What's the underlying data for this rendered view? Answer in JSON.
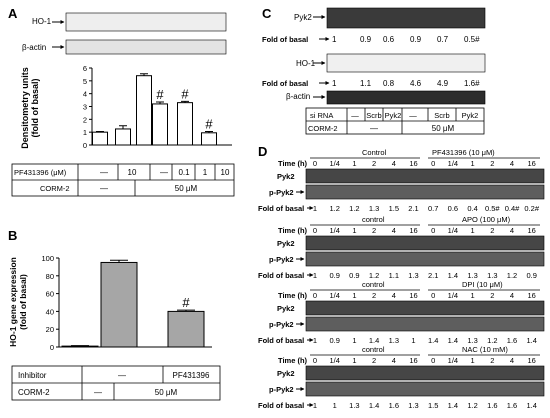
{
  "panels": {
    "A": {
      "letter": "A",
      "blot_labels": [
        "HO-1",
        "β-actin"
      ],
      "table": {
        "rows": [
          {
            "label": "PF431396 (μM)",
            "cells": [
              "—",
              "10",
              "—",
              "0.1",
              "1",
              "10"
            ]
          },
          {
            "label": "CORM-2",
            "cells": [
              "—",
              "50 μM"
            ]
          }
        ]
      },
      "sig_mark": "#"
    },
    "B": {
      "letter": "B",
      "table": {
        "rows": [
          {
            "label": "Inhibitor",
            "cells": [
              "—",
              "PF431396"
            ]
          },
          {
            "label": "CORM-2",
            "cells": [
              "—",
              "50 μM"
            ]
          }
        ]
      },
      "sig_mark": "#"
    },
    "C": {
      "letter": "C",
      "blot_labels": [
        "Pyk2",
        "HO-1",
        "β-actin"
      ],
      "fold_label": "Fold of basal",
      "fold_pyk2": [
        "1",
        "0.9",
        "0.6",
        "0.9",
        "0.7",
        "0.5#"
      ],
      "fold_ho1": [
        "1",
        "1.1",
        "0.8",
        "4.6",
        "4.9",
        "1.6#"
      ],
      "sirna": {
        "label": "si RNA",
        "cells": [
          "—",
          "Scrb",
          "Pyk2",
          "—",
          "Scrb",
          "Pyk2"
        ]
      },
      "corm": {
        "label": "CORM-2",
        "cells": [
          "—",
          "50 μM"
        ]
      }
    },
    "D": {
      "letter": "D",
      "time_label": "Time (h)",
      "times": [
        "0",
        "1/4",
        "1",
        "2",
        "4",
        "16"
      ],
      "row_labels": [
        "Pyk2",
        "p-Pyk2"
      ],
      "fold_label": "Fold of basal",
      "groups": [
        {
          "control": "Control",
          "treat": "PF431396 (10 μM)",
          "fold": [
            "1",
            "1.2",
            "1.2",
            "1.3",
            "1.5",
            "2.1",
            "0.7",
            "0.6",
            "0.4",
            "0.5#",
            "0.4#",
            "0.2#"
          ]
        },
        {
          "control": "control",
          "treat": "APO (100 μM)",
          "fold": [
            "1",
            "0.9",
            "0.9",
            "1.2",
            "1.1",
            "1.3",
            "2.1",
            "1.4",
            "1.3",
            "1.3",
            "1.2",
            "0.9"
          ]
        },
        {
          "control": "control",
          "treat": "DPI (10 μM)",
          "fold": [
            "1",
            "0.9",
            "1",
            "1.4",
            "1.3",
            "1",
            "1.4",
            "1.4",
            "1.3",
            "1.2",
            "1.6",
            "1.4"
          ]
        },
        {
          "control": "control",
          "treat": "NAC (10 mM)",
          "fold": [
            "1",
            "1",
            "1.3",
            "1.4",
            "1.6",
            "1.3",
            "1.5",
            "1.4",
            "1.2",
            "1.6",
            "1.6",
            "1.4"
          ]
        }
      ]
    }
  },
  "chart_data": [
    {
      "panel": "A",
      "type": "bar",
      "ylabel": "Densitometry units (fold of basal)",
      "ylim": [
        0,
        6
      ],
      "yticks": [
        "0",
        "1",
        "2",
        "3",
        "4",
        "5",
        "6"
      ],
      "values": [
        1.0,
        1.25,
        5.4,
        3.2,
        3.3,
        0.95
      ],
      "errors": [
        0.05,
        0.25,
        0.15,
        0.15,
        0.1,
        0.1
      ],
      "significant": [
        false,
        false,
        false,
        true,
        true,
        true
      ],
      "bar_color": "#ffffff"
    },
    {
      "panel": "B",
      "type": "bar",
      "ylabel": "HO-1 gene expression (fold of basal)",
      "ylim": [
        0,
        100
      ],
      "yticks": [
        "0",
        "20",
        "40",
        "60",
        "80",
        "100"
      ],
      "values": [
        1,
        95,
        40
      ],
      "errors": [
        0.5,
        2.5,
        1.5
      ],
      "significant": [
        false,
        false,
        true
      ],
      "bar_color": "#a6a6a6"
    }
  ]
}
